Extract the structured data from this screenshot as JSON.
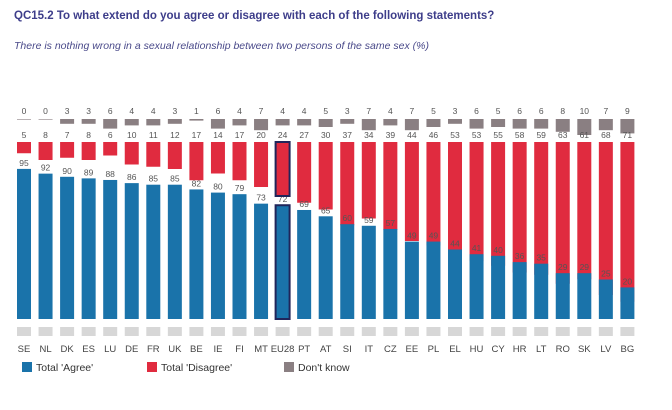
{
  "title": "QC15.2 To what extend do you agree or disagree with each of the following statements?",
  "subtitle": "There is nothing wrong in a sexual relationship between two persons of the same sex (%)",
  "colors": {
    "agree": "#1a73aa",
    "disagree": "#e02b3f",
    "dontknow": "#8a7f82",
    "highlight_border": "#20255a",
    "label": "#555555"
  },
  "chart_data": {
    "type": "bar",
    "stacked": false,
    "highlight_category": "EU28",
    "categories": [
      "SE",
      "NL",
      "DK",
      "ES",
      "LU",
      "DE",
      "FR",
      "UK",
      "BE",
      "IE",
      "FI",
      "MT",
      "EU28",
      "PT",
      "AT",
      "SI",
      "IT",
      "CZ",
      "EE",
      "PL",
      "EL",
      "HU",
      "CY",
      "HR",
      "LT",
      "RO",
      "SK",
      "LV",
      "BG"
    ],
    "series": [
      {
        "name": "Total 'Agree'",
        "values": [
          95,
          92,
          90,
          89,
          88,
          86,
          85,
          85,
          82,
          80,
          79,
          73,
          72,
          69,
          65,
          60,
          59,
          57,
          49,
          49,
          44,
          41,
          40,
          36,
          35,
          29,
          29,
          25,
          20
        ]
      },
      {
        "name": "Total 'Disagree'",
        "values": [
          5,
          8,
          7,
          8,
          6,
          10,
          11,
          12,
          17,
          14,
          17,
          20,
          24,
          27,
          30,
          37,
          34,
          39,
          44,
          46,
          53,
          53,
          55,
          58,
          59,
          63,
          61,
          68,
          71
        ]
      },
      {
        "name": "Don't know",
        "values": [
          0,
          0,
          3,
          3,
          6,
          4,
          4,
          3,
          1,
          6,
          4,
          7,
          4,
          4,
          5,
          3,
          7,
          4,
          7,
          5,
          3,
          6,
          5,
          6,
          6,
          8,
          10,
          7,
          9
        ]
      }
    ],
    "ylim": [
      0,
      100
    ],
    "legend_position": "bottom-left"
  },
  "legend": [
    {
      "label": "Total 'Agree'",
      "color": "#1a73aa"
    },
    {
      "label": "Total 'Disagree'",
      "color": "#e02b3f"
    },
    {
      "label": "Don't know",
      "color": "#8a7f82"
    }
  ]
}
